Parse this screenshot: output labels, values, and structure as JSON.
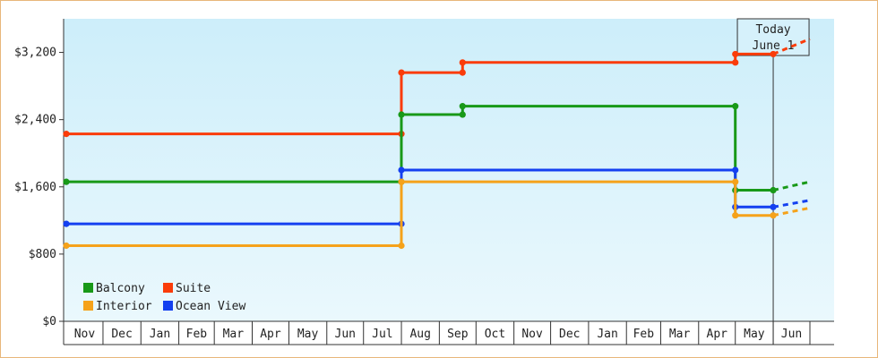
{
  "chart_data": {
    "type": "line",
    "subtype": "step",
    "title": "",
    "xlabel": "",
    "ylabel": "",
    "ylim": [
      0,
      3600
    ],
    "y_ticks": [
      {
        "value": 0,
        "label": "$0"
      },
      {
        "value": 800,
        "label": "$800"
      },
      {
        "value": 1600,
        "label": "$1,600"
      },
      {
        "value": 2400,
        "label": "$2,400"
      },
      {
        "value": 3200,
        "label": "$3,200"
      }
    ],
    "x_start_date": "2015-11-01",
    "x_end_date": "2017-07-01",
    "month_labels": [
      "Nov",
      "Dec",
      "Jan",
      "Feb",
      "Mar",
      "Apr",
      "May",
      "Jun",
      "Jul",
      "Aug",
      "Sep",
      "Oct",
      "Nov",
      "Dec",
      "Jan",
      "Feb",
      "Mar",
      "Apr",
      "May",
      "Jun"
    ],
    "grid": false,
    "background_gradient": [
      "#cdeefa",
      "#eaf8fd"
    ],
    "today": {
      "date": "2017-06-01",
      "label_line1": "Today",
      "label_line2": "June 1"
    },
    "legend": {
      "placement": "bottom-left",
      "entries": [
        {
          "name": "Balcony",
          "color": "#189918"
        },
        {
          "name": "Suite",
          "color": "#fa3c0a"
        },
        {
          "name": "Interior",
          "color": "#f5a21a"
        },
        {
          "name": "Ocean View",
          "color": "#1440f0"
        }
      ]
    },
    "series": [
      {
        "name": "Suite",
        "color": "#fa3c0a",
        "points": [
          {
            "date": "2015-11-01",
            "value": 2230
          },
          {
            "date": "2016-08-01",
            "value": 2230
          },
          {
            "date": "2016-08-01",
            "value": 2960
          },
          {
            "date": "2016-09-20",
            "value": 2960
          },
          {
            "date": "2016-09-20",
            "value": 3080
          },
          {
            "date": "2017-05-01",
            "value": 3080
          },
          {
            "date": "2017-05-01",
            "value": 3180
          },
          {
            "date": "2017-06-01",
            "value": 3180
          }
        ],
        "projection": [
          {
            "date": "2017-06-01",
            "value": 3180
          },
          {
            "date": "2017-07-01",
            "value": 3360
          }
        ]
      },
      {
        "name": "Balcony",
        "color": "#189918",
        "points": [
          {
            "date": "2015-11-01",
            "value": 1660
          },
          {
            "date": "2016-08-01",
            "value": 1660
          },
          {
            "date": "2016-08-01",
            "value": 2460
          },
          {
            "date": "2016-09-20",
            "value": 2460
          },
          {
            "date": "2016-09-20",
            "value": 2560
          },
          {
            "date": "2017-05-01",
            "value": 2560
          },
          {
            "date": "2017-05-01",
            "value": 1560
          },
          {
            "date": "2017-06-01",
            "value": 1560
          }
        ],
        "projection": [
          {
            "date": "2017-06-01",
            "value": 1560
          },
          {
            "date": "2017-07-01",
            "value": 1660
          }
        ]
      },
      {
        "name": "Ocean View",
        "color": "#1440f0",
        "points": [
          {
            "date": "2015-11-01",
            "value": 1160
          },
          {
            "date": "2016-08-01",
            "value": 1160
          },
          {
            "date": "2016-08-01",
            "value": 1800
          },
          {
            "date": "2017-05-01",
            "value": 1800
          },
          {
            "date": "2017-05-01",
            "value": 1360
          },
          {
            "date": "2017-06-01",
            "value": 1360
          }
        ],
        "projection": [
          {
            "date": "2017-06-01",
            "value": 1360
          },
          {
            "date": "2017-07-01",
            "value": 1440
          }
        ]
      },
      {
        "name": "Interior",
        "color": "#f5a21a",
        "points": [
          {
            "date": "2015-11-01",
            "value": 900
          },
          {
            "date": "2016-08-01",
            "value": 900
          },
          {
            "date": "2016-08-01",
            "value": 1660
          },
          {
            "date": "2017-05-01",
            "value": 1660
          },
          {
            "date": "2017-05-01",
            "value": 1260
          },
          {
            "date": "2017-06-01",
            "value": 1260
          }
        ],
        "projection": [
          {
            "date": "2017-06-01",
            "value": 1260
          },
          {
            "date": "2017-07-01",
            "value": 1350
          }
        ]
      }
    ]
  }
}
